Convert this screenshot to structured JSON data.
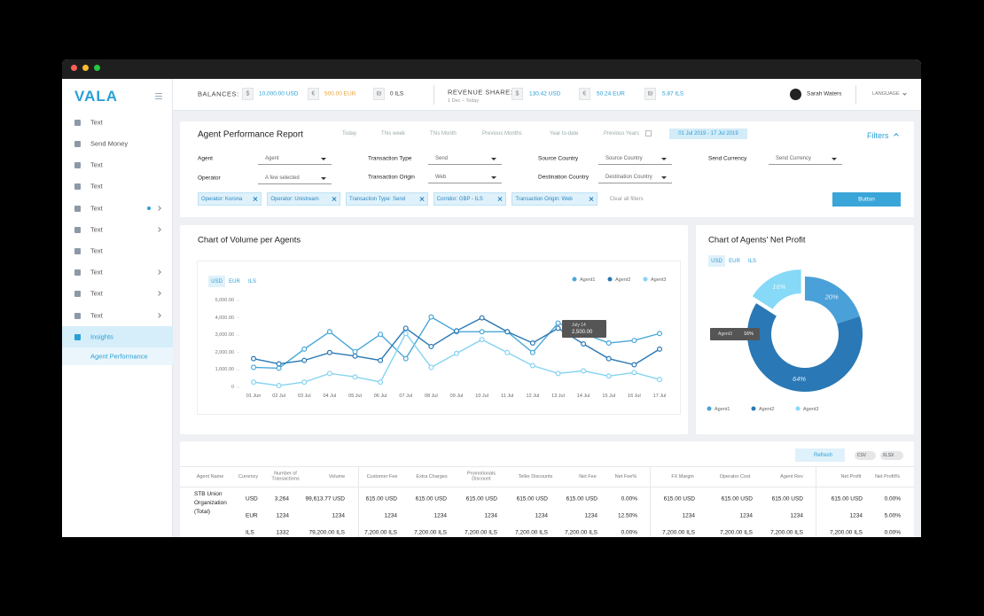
{
  "sidebar": {
    "logo": "VALA",
    "items": [
      "Text",
      "Send Money",
      "Text",
      "Text",
      "Text",
      "Text",
      "Text",
      "Text",
      "Text",
      "Text",
      "Insights"
    ],
    "subitem": "Agent Performance"
  },
  "topbar": {
    "balances_label": "BALANCES:",
    "balances": [
      {
        "symbol": "$",
        "amount": "10,000.00 USD"
      },
      {
        "symbol": "€",
        "amount": "500.00 EUR"
      },
      {
        "symbol": "₪",
        "amount": "0 ILS"
      }
    ],
    "revenue_label": "REVENUE SHARE:",
    "revenue_period": "1 Dec – Today",
    "revenue": [
      {
        "symbol": "$",
        "amount": "130.42 USD"
      },
      {
        "symbol": "€",
        "amount": "50.24 EUR"
      },
      {
        "symbol": "₪",
        "amount": "5.87 ILS"
      }
    ],
    "user": "Sarah Waters",
    "language": "LANGUAGE"
  },
  "filters": {
    "title": "Agent Performance Report",
    "periods": [
      "Today",
      "This week",
      "This Month",
      "Previous Months",
      "Year to-date",
      "Previous Years"
    ],
    "date_range": "01 Jul 2019 - 17 Jul 2019",
    "toggle": "Filters",
    "fields": [
      {
        "label": "Agent",
        "value": "Agent"
      },
      {
        "label": "Transaction Type",
        "value": "Send"
      },
      {
        "label": "Source Country",
        "value": "Source Country"
      },
      {
        "label": "Send Currency",
        "value": "Send Currency"
      },
      {
        "label": "Operator",
        "value": "A few selected"
      },
      {
        "label": "Transaction Origin",
        "value": "Web"
      },
      {
        "label": "Destination Country",
        "value": "Destination Country"
      }
    ],
    "chips": [
      "Operator: Korona",
      "Operator: Unistream",
      "Transaction Type: Send",
      "Corridor: GBP - ILS",
      "Transaction Origin: Web"
    ],
    "clear": "Clear all filters",
    "button": "Button"
  },
  "chart_data": [
    {
      "type": "line",
      "title": "Chart of Volume per Agents",
      "currency_tabs": [
        "USD",
        "EUR",
        "ILS"
      ],
      "categories": [
        "01 Jun",
        "02 Jul",
        "03 Jul",
        "04 Jul",
        "05 Jul",
        "06 Jul",
        "07 Jul",
        "08 Jul",
        "09 Jul",
        "10 Jul",
        "11 Jul",
        "12 Jul",
        "13 Jul",
        "14 Jul",
        "15 Jul",
        "16 Jul",
        "17 Jul"
      ],
      "series": [
        {
          "name": "Agent1",
          "color": "#4aa8d8",
          "values": [
            1150,
            1100,
            2200,
            3200,
            2050,
            3050,
            1650,
            4050,
            3200,
            3200,
            3200,
            2000,
            3700,
            3100,
            2550,
            2700,
            3100
          ]
        },
        {
          "name": "Agent2",
          "color": "#2a78b5",
          "values": [
            1650,
            1350,
            1550,
            2000,
            1800,
            1550,
            3400,
            2350,
            3250,
            4000,
            3200,
            2550,
            3400,
            2500,
            1650,
            1300,
            2200
          ]
        },
        {
          "name": "Agent3",
          "color": "#86d3f2",
          "values": [
            300,
            100,
            300,
            800,
            600,
            300,
            3100,
            1150,
            1950,
            2750,
            2000,
            1250,
            800,
            950,
            650,
            850,
            450
          ]
        }
      ],
      "ylim": [
        0,
        5000
      ],
      "yticks": [
        0,
        {
          "value": 1000,
          "label": "1,000.00"
        },
        {
          "value": 2000,
          "label": "2,000.00"
        },
        {
          "value": 3000,
          "label": "3,000.00"
        },
        {
          "value": 4000,
          "label": "4,000.00"
        },
        {
          "value": 5000,
          "label": "5,000.00"
        }
      ],
      "tooltip": {
        "label": "July 14",
        "value": "2,500.00"
      }
    },
    {
      "type": "pie",
      "title": "Chart of Agents' Net Profit",
      "currency_tabs": [
        "USD",
        "EUR",
        "ILS"
      ],
      "categories": [
        "Agent1",
        "Agent2",
        "Agent3"
      ],
      "values": [
        20,
        64,
        16
      ],
      "value_labels": [
        "20%",
        "64%",
        "16%"
      ],
      "colors": [
        "#4aa0d8",
        "#2a78b5",
        "#86d9f7"
      ],
      "tooltip": {
        "label": "Agent3",
        "value": "16%"
      }
    }
  ],
  "table": {
    "actions": [
      "Refresh",
      "CSV",
      "XLSX"
    ],
    "headers": [
      "Agent Name",
      "Currency",
      "Number of Transactions",
      "Volume",
      "Customer Fee",
      "Extra Charges",
      "Promotionals Discount",
      "Teller Discounts",
      "Net Fee",
      "Net Fee%",
      "FX Margin",
      "Operator Cost",
      "Agent Rev",
      "Net Profit",
      "Net Profit%"
    ],
    "rows": [
      [
        "STB Union Organization (Total)",
        "USD",
        "3,264",
        "99,613.77 USD",
        "615.00 USD",
        "615.00 USD",
        "615.00 USD",
        "615.00 USD",
        "615.00 USD",
        "0.00%",
        "615.00 USD",
        "615.00 USD",
        "615.00 USD",
        "615.00 USD",
        "0.00%"
      ],
      [
        null,
        "EUR",
        "1234",
        "1234",
        "1234",
        "1234",
        "1234",
        "1234",
        "1234",
        "12.50%",
        "1234",
        "1234",
        "1234",
        "1234",
        "5.00%"
      ],
      [
        null,
        "ILS",
        "1332",
        "79,200.00 ILS",
        "7,200.00 ILS",
        "7,200.00 ILS",
        "7,200.00 ILS",
        "7,200.00 ILS",
        "7,200.00 ILS",
        "0.00%",
        "7,200.00 ILS",
        "7,200.00 ILS",
        "7,200.00 ILS",
        "7,200.00 ILS",
        "0.00%"
      ]
    ]
  }
}
